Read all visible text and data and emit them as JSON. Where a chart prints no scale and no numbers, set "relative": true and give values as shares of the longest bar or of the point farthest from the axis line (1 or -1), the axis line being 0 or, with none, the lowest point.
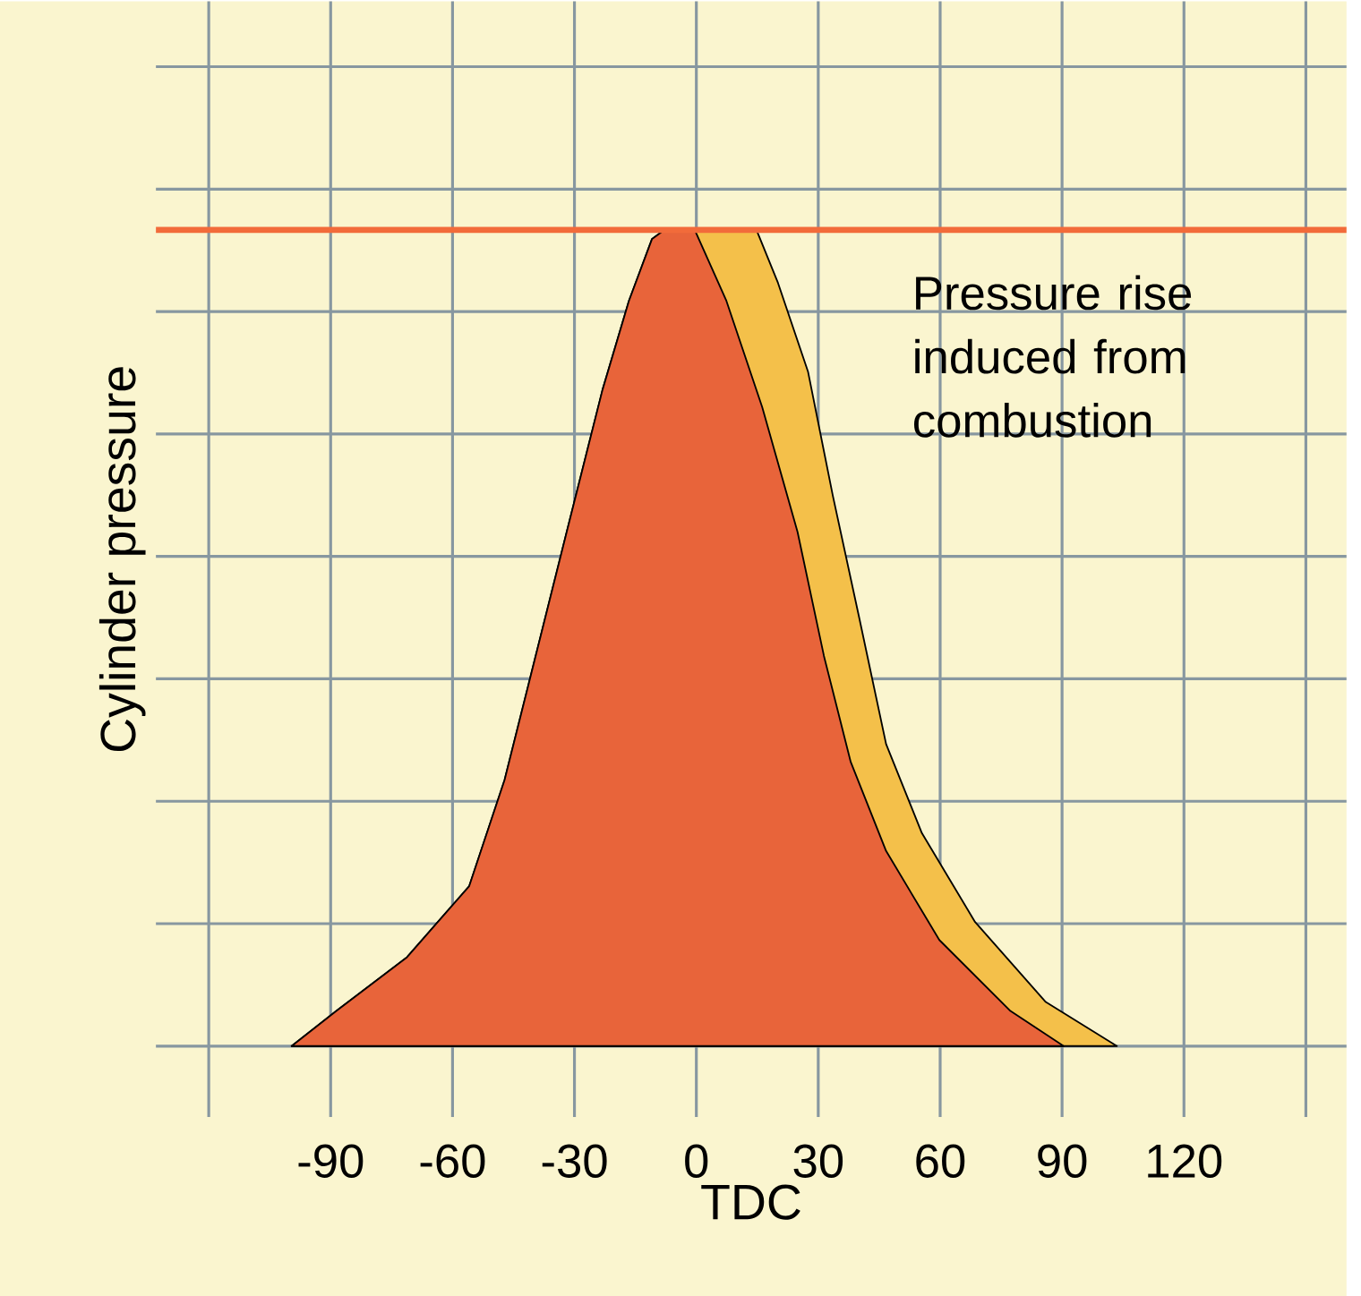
{
  "chart_data": {
    "type": "area",
    "relative": true,
    "xlabel": "TDC",
    "ylabel": "Cylinder pressure",
    "annotations": [
      "Pressure rise induced from combustion"
    ],
    "xlim": [
      -133,
      160
    ],
    "xticks": [
      {
        "value": -120,
        "label": null
      },
      -90,
      -60,
      -30,
      0,
      30,
      60,
      90,
      120,
      {
        "value": 150,
        "label": null
      }
    ],
    "grid": true,
    "marker": "none",
    "ref_lines": [
      {
        "axis": "y",
        "value": 1,
        "color": "#f26b3a"
      }
    ],
    "series": [
      {
        "color": "#f4c04a",
        "x": [
          -99.6,
          -88.6,
          -71.2,
          -55.9,
          -47.2,
          -40.6,
          -31.9,
          -23.1,
          -16.6,
          -10.9,
          -7.9,
          14.8,
          20.1,
          27.5,
          33.6,
          40.2,
          46.7,
          55.5,
          68.6,
          86.0,
          103.5
        ],
        "values": [
          0,
          0.043,
          0.109,
          0.196,
          0.326,
          0.457,
          0.63,
          0.804,
          0.913,
          0.989,
          1,
          1,
          0.935,
          0.826,
          0.674,
          0.522,
          0.37,
          0.261,
          0.152,
          0.054,
          0
        ]
      },
      {
        "color": "#e8643a",
        "x": [
          -99.6,
          -88.6,
          -71.2,
          -55.9,
          -47.2,
          -40.6,
          -31.9,
          -23.1,
          -16.6,
          -10.9,
          -7.9,
          -0.4,
          7.4,
          16.2,
          24.9,
          31.4,
          38.0,
          46.7,
          59.8,
          77.3,
          90.4
        ],
        "values": [
          0,
          0.043,
          0.109,
          0.196,
          0.326,
          0.457,
          0.63,
          0.804,
          0.913,
          0.989,
          1,
          1,
          0.913,
          0.783,
          0.63,
          0.478,
          0.348,
          0.239,
          0.13,
          0.043,
          0
        ]
      }
    ]
  }
}
